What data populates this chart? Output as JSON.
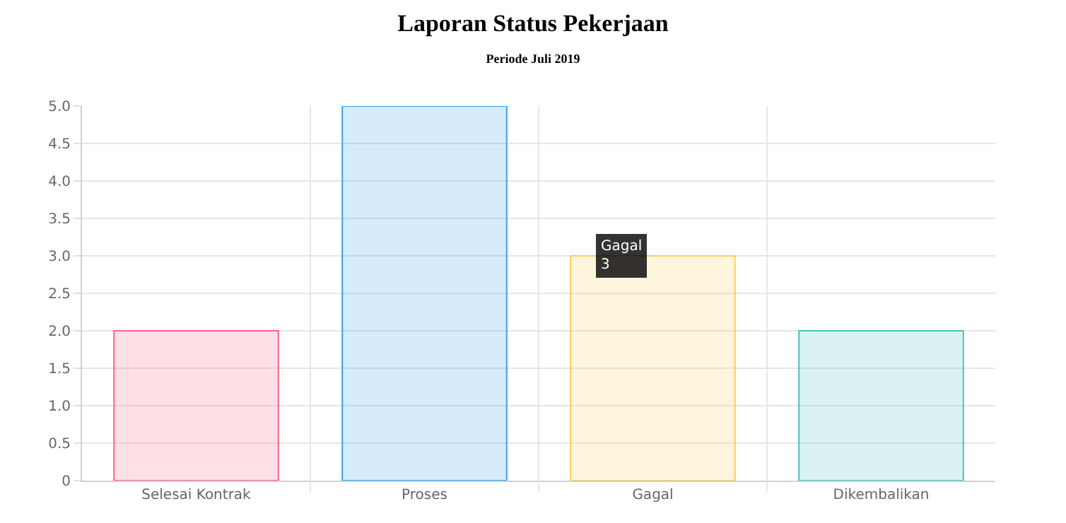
{
  "chart_data": {
    "type": "bar",
    "title": "Laporan Status Pekerjaan",
    "subtitle": "Periode Juli 2019",
    "categories": [
      "Selesai Kontrak",
      "Proses",
      "Gagal",
      "Dikembalikan"
    ],
    "values": [
      2,
      5,
      3,
      2
    ],
    "colors": [
      "#ff6384",
      "#36a2eb",
      "#ffce56",
      "#4bc0c0"
    ],
    "ylim": [
      0,
      5
    ],
    "yticks": [
      {
        "value": 0,
        "label": "0"
      },
      {
        "value": 0.5,
        "label": "0.5"
      },
      {
        "value": 1,
        "label": "1.0"
      },
      {
        "value": 1.5,
        "label": "1.5"
      },
      {
        "value": 2,
        "label": "2.0"
      },
      {
        "value": 2.5,
        "label": "2.5"
      },
      {
        "value": 3,
        "label": "3.0"
      },
      {
        "value": 3.5,
        "label": "3.5"
      },
      {
        "value": 4,
        "label": "4.0"
      },
      {
        "value": 4.5,
        "label": "4.5"
      },
      {
        "value": 5,
        "label": "5.0"
      }
    ],
    "grid": true,
    "annotations": [
      {
        "text": "Gagal\n3",
        "x": "Gagal",
        "y": 3
      }
    ]
  }
}
